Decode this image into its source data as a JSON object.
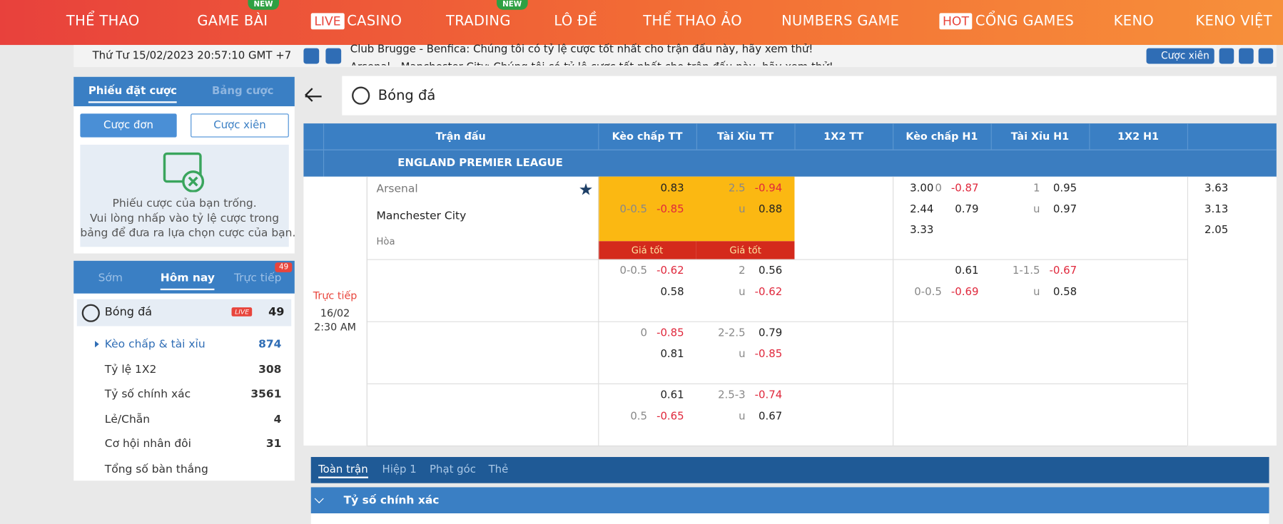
{
  "nav": [
    {
      "label": "THỂ THAO"
    },
    {
      "label": "GAME BÀI",
      "badge": "NEW"
    },
    {
      "label": "CASINO",
      "tag": "LIVE"
    },
    {
      "label": "TRADING",
      "badge": "NEW"
    },
    {
      "label": "LÔ ĐỀ"
    },
    {
      "label": "THỂ THAO ẢO"
    },
    {
      "label": "NUMBERS GAME"
    },
    {
      "label": "CỔNG GAMES",
      "tag": "HOT"
    },
    {
      "label": "KENO"
    },
    {
      "label": "KENO VIỆT"
    }
  ],
  "topbar": {
    "datetime": "Thứ Tư 15/02/2023 20:57:10 GMT +7",
    "ticker": [
      "Club Brugge - Benfica: Chúng tôi có tỷ lệ cược tốt nhất cho trận đấu này, hãy xem thử!",
      "Arsenal - Manchester City: Chúng tôi có tỷ lệ cược tốt nhất cho trận đấu này, hãy xem thử!"
    ],
    "parlay": "Cược xiên"
  },
  "betslip": {
    "tabs": [
      "Phiếu đặt cược",
      "Bảng cược"
    ],
    "buttons": [
      "Cược đơn",
      "Cược xiên"
    ],
    "empty": [
      "Phiếu cược của bạn trống.",
      "Vui lòng nhấp vào tỷ lệ cược trong",
      "bảng để đưa ra lựa chọn cược của bạn."
    ]
  },
  "sports": {
    "tabs": [
      "Sớm",
      "Hôm nay",
      "Trực tiếp"
    ],
    "live_count": "49",
    "sport": {
      "name": "Bóng đá",
      "live": "LIVE",
      "count": "49"
    },
    "markets": [
      {
        "name": "Kèo chấp & tài xỉu",
        "count": "874"
      },
      {
        "name": "Tỷ lệ 1X2",
        "count": "308"
      },
      {
        "name": "Tỷ số chính xác",
        "count": "3561"
      },
      {
        "name": "Lẻ/Chẵn",
        "count": "4"
      },
      {
        "name": "Cơ hội nhân đôi",
        "count": "31"
      },
      {
        "name": "Tổng số bàn thắng"
      }
    ]
  },
  "main": {
    "title": "Bóng đá",
    "columns": [
      "Trận đấu",
      "Kèo chấp TT",
      "Tài Xỉu TT",
      "1X2 TT",
      "Kèo chấp H1",
      "Tài Xỉu H1",
      "1X2 H1"
    ],
    "league": "ENGLAND PREMIER LEAGUE",
    "match": {
      "status": "Trực tiếp",
      "date": "16/02",
      "time": "2:30 AM",
      "home": "Arsenal",
      "away": "Manchester City",
      "draw": "Hòa",
      "best": "Giá tốt"
    },
    "rows": [
      [
        [
          {
            "o": "0.83"
          },
          {
            "h": "0-0.5",
            "o": "-0.85"
          }
        ],
        [
          {
            "h": "2.5",
            "o": "-0.94"
          },
          {
            "h": "u",
            "o": "0.88"
          }
        ],
        [
          {
            "o": "3.00"
          },
          {
            "o": "2.44"
          },
          {
            "o": "3.33"
          }
        ],
        [
          {
            "h": "0",
            "o": "-0.87"
          },
          {
            "o": "0.79"
          }
        ],
        [
          {
            "h": "1",
            "o": "0.95"
          },
          {
            "h": "u",
            "o": "0.97"
          }
        ],
        [
          {
            "o": "3.63"
          },
          {
            "o": "3.13"
          },
          {
            "o": "2.05"
          }
        ]
      ],
      [
        [
          {
            "h": "0-0.5",
            "o": "-0.62"
          },
          {
            "o": "0.58"
          }
        ],
        [
          {
            "h": "2",
            "o": "0.56"
          },
          {
            "h": "u",
            "o": "-0.62"
          }
        ],
        [],
        [
          {
            "o": "0.61"
          },
          {
            "h": "0-0.5",
            "o": "-0.69"
          }
        ],
        [
          {
            "h": "1-1.5",
            "o": "-0.67"
          },
          {
            "h": "u",
            "o": "0.58"
          }
        ],
        []
      ],
      [
        [
          {
            "h": "0",
            "o": "-0.85"
          },
          {
            "o": "0.81"
          }
        ],
        [
          {
            "h": "2-2.5",
            "o": "0.79"
          },
          {
            "h": "u",
            "o": "-0.85"
          }
        ],
        [],
        [],
        [],
        []
      ],
      [
        [
          {
            "o": "0.61"
          },
          {
            "h": "0.5",
            "o": "-0.65"
          }
        ],
        [
          {
            "h": "2.5-3",
            "o": "-0.74"
          },
          {
            "h": "u",
            "o": "0.67"
          }
        ],
        [],
        [],
        [],
        []
      ]
    ],
    "tabs": [
      "Toàn trận",
      "Hiệp 1",
      "Phạt góc",
      "Thẻ"
    ],
    "market": "Tỷ số chính xác"
  }
}
